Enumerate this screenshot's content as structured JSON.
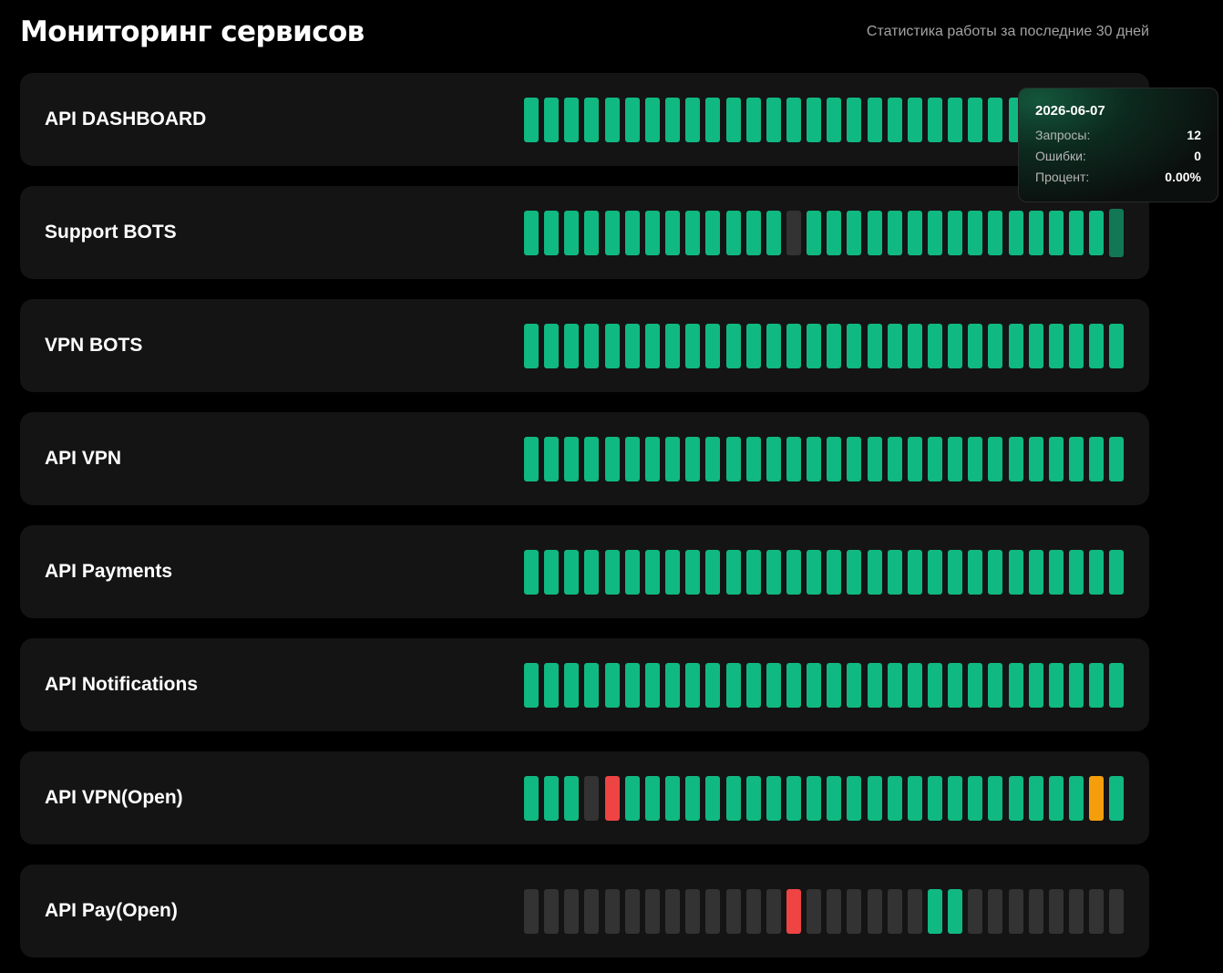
{
  "header": {
    "title": "Мониторинг сервисов",
    "subtitle": "Статистика работы за последние 30 дней"
  },
  "colors": {
    "ok": "#10b981",
    "no_data": "#333333",
    "error": "#ef4444",
    "warning": "#f59e0b",
    "card": "#141414",
    "background": "#000000"
  },
  "services": [
    {
      "name": "API DASHBOARD",
      "days": [
        "ok",
        "ok",
        "ok",
        "ok",
        "ok",
        "ok",
        "ok",
        "ok",
        "ok",
        "ok",
        "ok",
        "ok",
        "ok",
        "ok",
        "ok",
        "ok",
        "ok",
        "ok",
        "ok",
        "ok",
        "ok",
        "ok",
        "ok",
        "ok",
        "ok",
        "ok",
        "ok",
        "ok",
        "ok",
        "ok"
      ]
    },
    {
      "name": "Support BOTS",
      "active_day": 29,
      "days": [
        "ok",
        "ok",
        "ok",
        "ok",
        "ok",
        "ok",
        "ok",
        "ok",
        "ok",
        "ok",
        "ok",
        "ok",
        "ok",
        "no_data",
        "ok",
        "ok",
        "ok",
        "ok",
        "ok",
        "ok",
        "ok",
        "ok",
        "ok",
        "ok",
        "ok",
        "ok",
        "ok",
        "ok",
        "ok",
        "ok"
      ]
    },
    {
      "name": "VPN BOTS",
      "days": [
        "ok",
        "ok",
        "ok",
        "ok",
        "ok",
        "ok",
        "ok",
        "ok",
        "ok",
        "ok",
        "ok",
        "ok",
        "ok",
        "ok",
        "ok",
        "ok",
        "ok",
        "ok",
        "ok",
        "ok",
        "ok",
        "ok",
        "ok",
        "ok",
        "ok",
        "ok",
        "ok",
        "ok",
        "ok",
        "ok"
      ]
    },
    {
      "name": "API VPN",
      "days": [
        "ok",
        "ok",
        "ok",
        "ok",
        "ok",
        "ok",
        "ok",
        "ok",
        "ok",
        "ok",
        "ok",
        "ok",
        "ok",
        "ok",
        "ok",
        "ok",
        "ok",
        "ok",
        "ok",
        "ok",
        "ok",
        "ok",
        "ok",
        "ok",
        "ok",
        "ok",
        "ok",
        "ok",
        "ok",
        "ok"
      ]
    },
    {
      "name": "API Payments",
      "days": [
        "ok",
        "ok",
        "ok",
        "ok",
        "ok",
        "ok",
        "ok",
        "ok",
        "ok",
        "ok",
        "ok",
        "ok",
        "ok",
        "ok",
        "ok",
        "ok",
        "ok",
        "ok",
        "ok",
        "ok",
        "ok",
        "ok",
        "ok",
        "ok",
        "ok",
        "ok",
        "ok",
        "ok",
        "ok",
        "ok"
      ]
    },
    {
      "name": "API Notifications",
      "days": [
        "ok",
        "ok",
        "ok",
        "ok",
        "ok",
        "ok",
        "ok",
        "ok",
        "ok",
        "ok",
        "ok",
        "ok",
        "ok",
        "ok",
        "ok",
        "ok",
        "ok",
        "ok",
        "ok",
        "ok",
        "ok",
        "ok",
        "ok",
        "ok",
        "ok",
        "ok",
        "ok",
        "ok",
        "ok",
        "ok"
      ]
    },
    {
      "name": "API VPN(Open)",
      "days": [
        "ok",
        "ok",
        "ok",
        "no_data",
        "error",
        "ok",
        "ok",
        "ok",
        "ok",
        "ok",
        "ok",
        "ok",
        "ok",
        "ok",
        "ok",
        "ok",
        "ok",
        "ok",
        "ok",
        "ok",
        "ok",
        "ok",
        "ok",
        "ok",
        "ok",
        "ok",
        "ok",
        "ok",
        "warning",
        "ok"
      ]
    },
    {
      "name": "API Pay(Open)",
      "days": [
        "no_data",
        "no_data",
        "no_data",
        "no_data",
        "no_data",
        "no_data",
        "no_data",
        "no_data",
        "no_data",
        "no_data",
        "no_data",
        "no_data",
        "no_data",
        "error",
        "no_data",
        "no_data",
        "no_data",
        "no_data",
        "no_data",
        "no_data",
        "ok",
        "ok",
        "no_data",
        "no_data",
        "no_data",
        "no_data",
        "no_data",
        "no_data",
        "no_data",
        "no_data"
      ]
    }
  ],
  "tooltip": {
    "date": "2026-06-07",
    "rows": [
      {
        "label": "Запросы:",
        "value": "12"
      },
      {
        "label": "Ошибки:",
        "value": "0"
      },
      {
        "label": "Процент:",
        "value": "0.00%"
      }
    ]
  }
}
